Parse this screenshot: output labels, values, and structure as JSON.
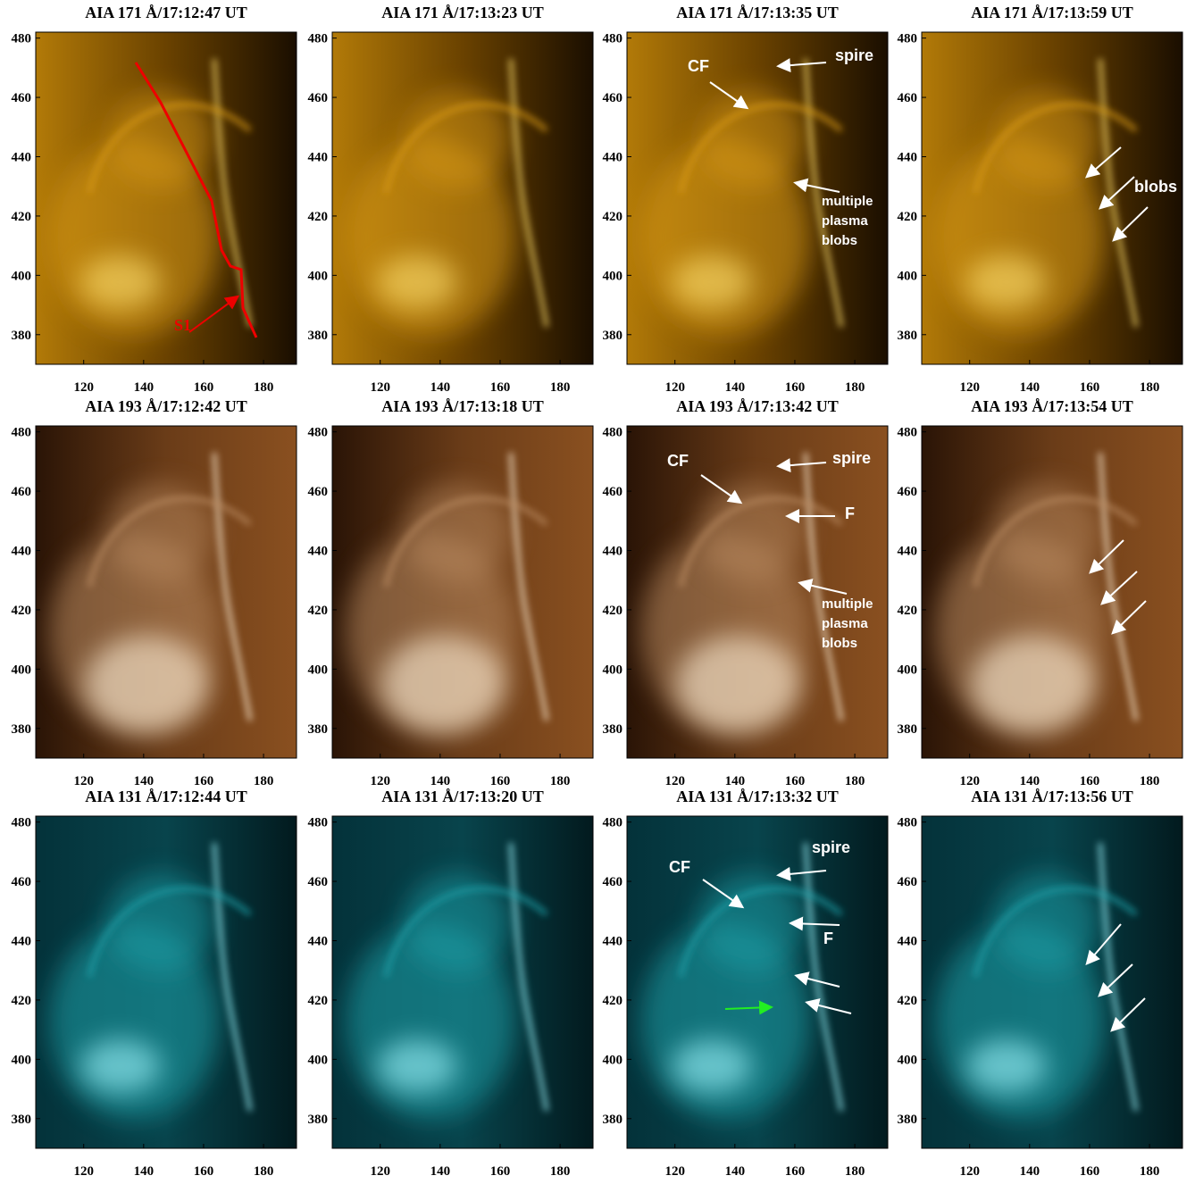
{
  "axes": {
    "xlim": [
      104,
      191
    ],
    "ylim": [
      370,
      482
    ],
    "xticks": [
      120,
      140,
      160,
      180
    ],
    "yticks": [
      380,
      400,
      420,
      440,
      460,
      480
    ]
  },
  "panels": [
    {
      "title": "AIA 171 Å/17:12:47 UT",
      "annotations": [
        "S1"
      ]
    },
    {
      "title": "AIA 171 Å/17:13:23 UT"
    },
    {
      "title": "AIA 171 Å/17:13:35 UT",
      "annotations": [
        "CF",
        "spire",
        [
          "multiple",
          "plasma",
          "blobs"
        ]
      ]
    },
    {
      "title": "AIA 171 Å/17:13:59 UT",
      "annotations": [
        "blobs"
      ]
    },
    {
      "title": "AIA 193 Å/17:12:42 UT"
    },
    {
      "title": "AIA 193 Å/17:13:18 UT"
    },
    {
      "title": "AIA 193 Å/17:13:42 UT",
      "annotations": [
        "CF",
        "spire",
        "F",
        [
          "multiple",
          "plasma",
          "blobs"
        ]
      ]
    },
    {
      "title": "AIA 193 Å/17:13:54 UT"
    },
    {
      "title": "AIA 131 Å/17:12:44 UT"
    },
    {
      "title": "AIA 131 Å/17:13:20 UT"
    },
    {
      "title": "AIA 131 Å/17:13:32 UT",
      "annotations": [
        "CF",
        "spire",
        "F"
      ]
    },
    {
      "title": "AIA 131 Å/17:13:56 UT"
    }
  ]
}
